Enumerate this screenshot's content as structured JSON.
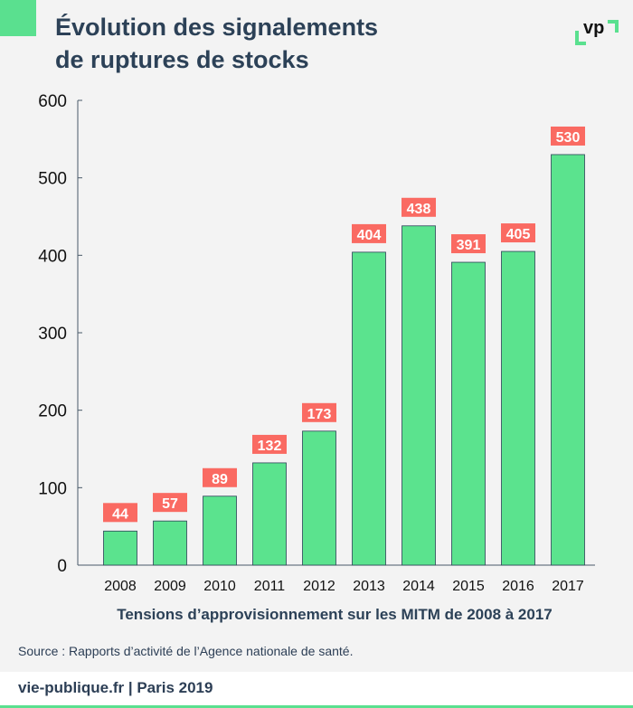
{
  "title_line1": "Évolution des signalements",
  "title_line2": "de ruptures de stocks",
  "logo_text": "vp",
  "source": "Source : Rapports d’activité de l’Agence nationale de santé.",
  "footer": "vie-publique.fr | Paris 2019",
  "colors": {
    "bar": "#5be38e",
    "label_bg": "#fa6a62",
    "accent": "#5ae08f",
    "text": "#2c4157"
  },
  "chart_data": {
    "type": "bar",
    "title": "Évolution des signalements de ruptures de stocks",
    "xlabel": "Tensions d’approvisionnement sur les MITM de 2008 à 2017",
    "ylabel": "",
    "categories": [
      "2008",
      "2009",
      "2010",
      "2011",
      "2012",
      "2013",
      "2014",
      "2015",
      "2016",
      "2017"
    ],
    "values": [
      44,
      57,
      89,
      132,
      173,
      404,
      438,
      391,
      405,
      530
    ],
    "ylim": [
      0,
      600
    ],
    "yticks": [
      0,
      100,
      200,
      300,
      400,
      500,
      600
    ],
    "grid": false,
    "data_labels": true
  }
}
